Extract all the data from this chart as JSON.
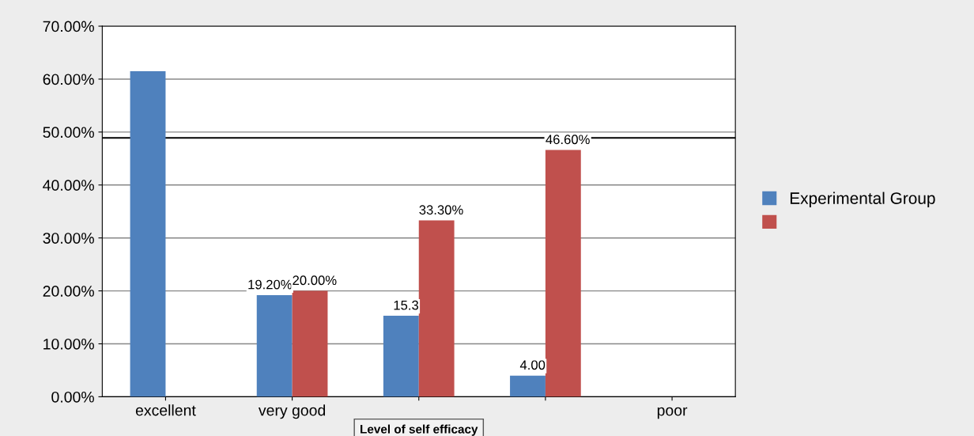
{
  "chart_data": {
    "type": "bar",
    "xlabel": "Level of self efficacy",
    "categories": [
      "excellent",
      "very good",
      null,
      null,
      "poor"
    ],
    "series": [
      {
        "name": "Experimental Group",
        "color": "#4f81bd",
        "values": [
          61.5,
          19.2,
          15.3,
          4.0,
          null
        ],
        "value_labels": [
          null,
          "19.20%",
          "15.3",
          "4.00",
          null
        ]
      },
      {
        "color": "#c0504d",
        "values": [
          null,
          20.0,
          33.3,
          46.6,
          null
        ],
        "value_labels": [
          null,
          "20.00%",
          "33.30%",
          "46.60%",
          null
        ]
      }
    ],
    "ylim": [
      0,
      70
    ],
    "yticks": [
      {
        "value": 0,
        "label": "0.00%"
      },
      {
        "value": 10,
        "label": "10.00%"
      },
      {
        "value": 20,
        "label": "20.00%"
      },
      {
        "value": 30,
        "label": "30.00%"
      },
      {
        "value": 40,
        "label": "40.00%"
      },
      {
        "value": 50,
        "label": "50.00%"
      },
      {
        "value": 60,
        "label": "60.00%"
      },
      {
        "value": 70,
        "label": "70.00%"
      }
    ],
    "ref_lines": [
      {
        "axis": "y",
        "value": 48.9,
        "color": "#000000"
      }
    ],
    "grid": "y",
    "legend": "right"
  }
}
